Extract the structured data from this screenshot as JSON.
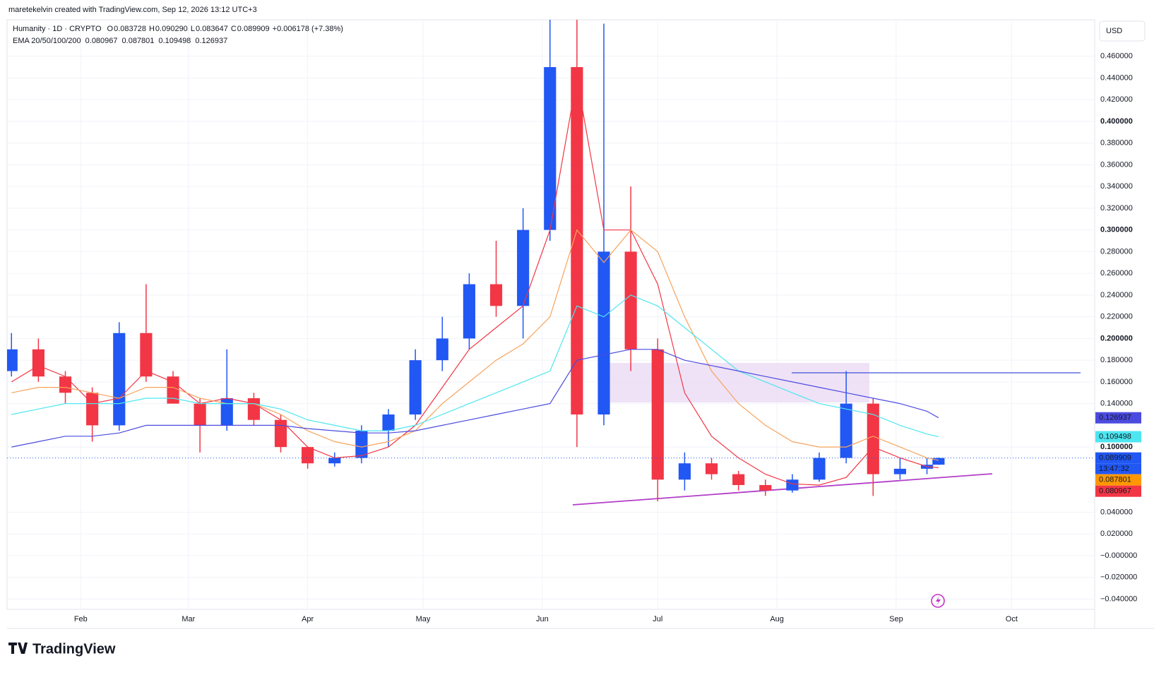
{
  "attribution": "maretekelvin created with TradingView.com, Sep 12, 2026 13:12 UTC+3",
  "brand": "TradingView",
  "currency": "USD",
  "countdown": "13:47:32",
  "chart_data": {
    "type": "candlestick",
    "title": "Humanity · 1D · CRYPTO",
    "ohlc_text": [
      "O",
      "0.083728",
      "H",
      "0.090290",
      "L",
      "0.083647",
      "C",
      "0.089909",
      "+0.006178 (+7.38%)"
    ],
    "indicator_label": "EMA 20/50/100/200",
    "up_color": "#2157f3",
    "down_color": "#f23645",
    "x": [
      14,
      21,
      28,
      35,
      42,
      49,
      56,
      63,
      70,
      77,
      84,
      91,
      98,
      105,
      112,
      119,
      126,
      133,
      140,
      147,
      154,
      161,
      168,
      175,
      182,
      189,
      196,
      203,
      210,
      217,
      224,
      231,
      238,
      245,
      252,
      255
    ],
    "open": [
      0.17,
      0.19,
      0.165,
      0.15,
      0.12,
      0.205,
      0.165,
      0.14,
      0.12,
      0.145,
      0.125,
      0.1,
      0.085,
      0.09,
      0.115,
      0.13,
      0.18,
      0.2,
      0.25,
      0.23,
      0.3,
      0.45,
      0.13,
      0.28,
      0.19,
      0.07,
      0.085,
      0.075,
      0.065,
      0.06,
      0.07,
      0.09,
      0.14,
      0.075,
      0.08,
      0.083728
    ],
    "high": [
      0.205,
      0.2,
      0.17,
      0.155,
      0.215,
      0.25,
      0.17,
      0.145,
      0.19,
      0.15,
      0.13,
      0.1,
      0.095,
      0.12,
      0.135,
      0.19,
      0.22,
      0.26,
      0.29,
      0.32,
      0.5,
      0.5,
      0.49,
      0.34,
      0.2,
      0.095,
      0.09,
      0.078,
      0.07,
      0.075,
      0.095,
      0.17,
      0.145,
      0.09,
      0.09,
      0.09029
    ],
    "low": [
      0.165,
      0.16,
      0.14,
      0.105,
      0.115,
      0.16,
      0.14,
      0.095,
      0.115,
      0.12,
      0.095,
      0.08,
      0.082,
      0.085,
      0.1,
      0.125,
      0.17,
      0.19,
      0.22,
      0.2,
      0.29,
      0.1,
      0.12,
      0.17,
      0.05,
      0.06,
      0.07,
      0.06,
      0.055,
      0.058,
      0.068,
      0.085,
      0.055,
      0.07,
      0.075,
      0.083647
    ],
    "close": [
      0.19,
      0.165,
      0.15,
      0.12,
      0.205,
      0.165,
      0.14,
      0.12,
      0.145,
      0.125,
      0.1,
      0.085,
      0.09,
      0.115,
      0.13,
      0.18,
      0.2,
      0.25,
      0.23,
      0.3,
      0.45,
      0.13,
      0.28,
      0.19,
      0.07,
      0.085,
      0.075,
      0.065,
      0.06,
      0.07,
      0.09,
      0.14,
      0.075,
      0.08,
      0.0837,
      0.089909
    ],
    "series": [
      {
        "name": "EMA 20",
        "color": "#f23645",
        "values": [
          0.16,
          0.175,
          0.165,
          0.14,
          0.145,
          0.17,
          0.16,
          0.14,
          0.145,
          0.14,
          0.125,
          0.1,
          0.09,
          0.092,
          0.1,
          0.12,
          0.155,
          0.19,
          0.21,
          0.23,
          0.3,
          0.44,
          0.3,
          0.3,
          0.25,
          0.15,
          0.11,
          0.09,
          0.075,
          0.066,
          0.065,
          0.072,
          0.1,
          0.09,
          0.082,
          0.080967
        ]
      },
      {
        "name": "EMA 50",
        "color": "#f7a35c",
        "values": [
          0.15,
          0.155,
          0.155,
          0.15,
          0.145,
          0.155,
          0.155,
          0.145,
          0.14,
          0.14,
          0.13,
          0.115,
          0.105,
          0.1,
          0.105,
          0.115,
          0.14,
          0.16,
          0.18,
          0.195,
          0.22,
          0.3,
          0.27,
          0.3,
          0.28,
          0.22,
          0.17,
          0.14,
          0.12,
          0.105,
          0.1,
          0.1,
          0.11,
          0.1,
          0.09,
          0.087801
        ]
      },
      {
        "name": "EMA 100",
        "color": "#4ee6f0",
        "values": [
          0.13,
          0.135,
          0.14,
          0.14,
          0.14,
          0.145,
          0.145,
          0.14,
          0.14,
          0.14,
          0.135,
          0.125,
          0.12,
          0.115,
          0.115,
          0.12,
          0.13,
          0.14,
          0.15,
          0.16,
          0.17,
          0.23,
          0.22,
          0.24,
          0.23,
          0.21,
          0.19,
          0.17,
          0.16,
          0.15,
          0.14,
          0.135,
          0.13,
          0.12,
          0.112,
          0.109498
        ]
      },
      {
        "name": "EMA 200",
        "color": "#4b4be0",
        "values": [
          0.1,
          0.105,
          0.11,
          0.11,
          0.113,
          0.12,
          0.12,
          0.12,
          0.12,
          0.12,
          0.12,
          0.117,
          0.115,
          0.113,
          0.113,
          0.115,
          0.12,
          0.125,
          0.13,
          0.135,
          0.14,
          0.18,
          0.185,
          0.19,
          0.19,
          0.18,
          0.175,
          0.17,
          0.165,
          0.16,
          0.155,
          0.15,
          0.145,
          0.14,
          0.133,
          0.126937
        ]
      }
    ],
    "xlim": [
      12.85,
      295.6
    ],
    "xticks": [
      {
        "value": 32,
        "label": "Feb"
      },
      {
        "value": 60,
        "label": "Mar"
      },
      {
        "value": 91,
        "label": "Apr"
      },
      {
        "value": 121,
        "label": "May"
      },
      {
        "value": 152,
        "label": "Jun"
      },
      {
        "value": 182,
        "label": "Jul"
      },
      {
        "value": 213,
        "label": "Aug"
      },
      {
        "value": 244,
        "label": "Sep"
      },
      {
        "value": 274,
        "label": "Oct"
      }
    ],
    "ylim": [
      -0.0495,
      0.4936
    ],
    "yticks": [
      {
        "value": -0.04,
        "label": "−0.040000"
      },
      {
        "value": -0.02,
        "label": "−0.020000"
      },
      {
        "value": 0,
        "label": "−0.000000"
      },
      {
        "value": 0.02,
        "label": "0.020000"
      },
      {
        "value": 0.04,
        "label": "0.040000"
      },
      {
        "value": 0.1,
        "label": "0.100000"
      },
      {
        "value": 0.14,
        "label": "0.140000"
      },
      {
        "value": 0.16,
        "label": "0.160000"
      },
      {
        "value": 0.18,
        "label": "0.180000"
      },
      {
        "value": 0.2,
        "label": "0.200000"
      },
      {
        "value": 0.22,
        "label": "0.220000"
      },
      {
        "value": 0.24,
        "label": "0.240000"
      },
      {
        "value": 0.26,
        "label": "0.260000"
      },
      {
        "value": 0.28,
        "label": "0.280000"
      },
      {
        "value": 0.3,
        "label": "0.300000"
      },
      {
        "value": 0.32,
        "label": "0.320000"
      },
      {
        "value": 0.34,
        "label": "0.340000"
      },
      {
        "value": 0.36,
        "label": "0.360000"
      },
      {
        "value": 0.38,
        "label": "0.380000"
      },
      {
        "value": 0.4,
        "label": "0.400000"
      },
      {
        "value": 0.42,
        "label": "0.420000"
      },
      {
        "value": 0.44,
        "label": "0.440000"
      },
      {
        "value": 0.46,
        "label": "0.460000"
      }
    ],
    "grid": true
  }
}
